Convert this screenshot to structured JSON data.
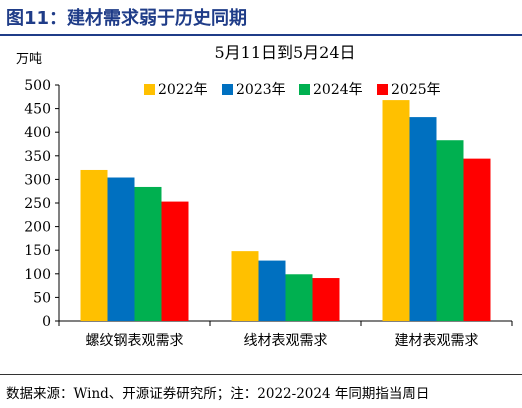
{
  "figure": {
    "title": "图11：建材需求弱于历史同期",
    "source_note": "数据来源：Wind、开源证券研究所；注：2022-2024 年同期指当周日"
  },
  "chart_data": {
    "type": "bar",
    "title": "5月11日到5月24日",
    "ylabel": "万吨",
    "xlabel": "",
    "ylim": [
      0,
      500
    ],
    "yticks": [
      0,
      50,
      100,
      150,
      200,
      250,
      300,
      350,
      400,
      450,
      500
    ],
    "categories": [
      "螺纹钢表观需求",
      "线材表观需求",
      "建材表观需求"
    ],
    "series": [
      {
        "name": "2022年",
        "color": "#FFC000",
        "values": [
          320,
          148,
          468
        ]
      },
      {
        "name": "2023年",
        "color": "#0070C0",
        "values": [
          304,
          128,
          432
        ]
      },
      {
        "name": "2024年",
        "color": "#00B050",
        "values": [
          284,
          99,
          383
        ]
      },
      {
        "name": "2025年",
        "color": "#FF0000",
        "values": [
          253,
          91,
          344
        ]
      }
    ],
    "legend": "top-right",
    "grid": false
  }
}
